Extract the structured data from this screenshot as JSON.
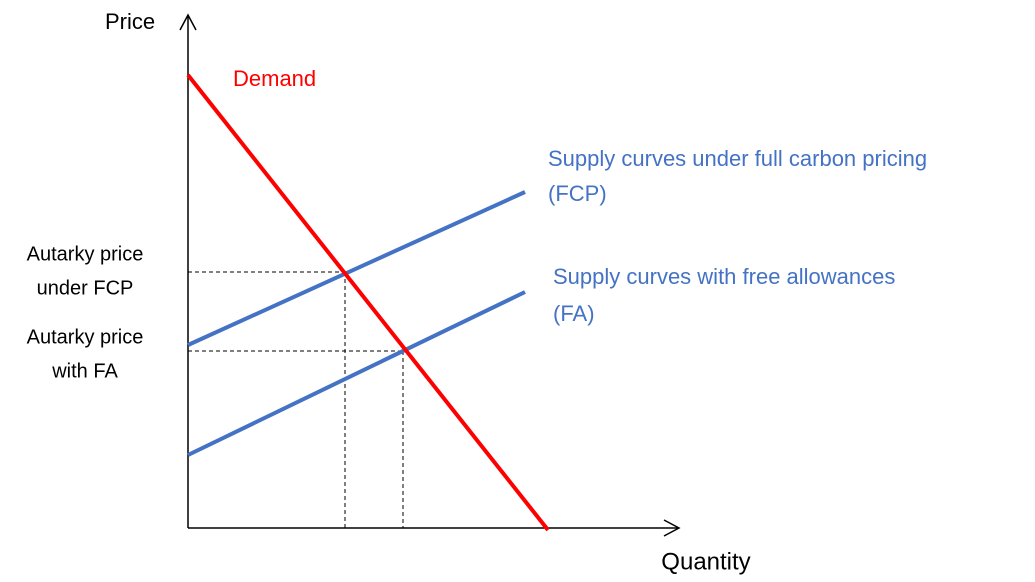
{
  "axes": {
    "y_label": "Price",
    "x_label": "Quantity"
  },
  "curves": {
    "demand": "Demand",
    "supply_fcp": [
      "Supply curves under full carbon pricing",
      "(FCP)"
    ],
    "supply_fa": [
      "Supply curves with free allowances",
      "(FA)"
    ]
  },
  "price_labels": {
    "fcp": [
      "Autarky price",
      "under FCP"
    ],
    "fa": [
      "Autarky price",
      "with FA"
    ]
  }
}
